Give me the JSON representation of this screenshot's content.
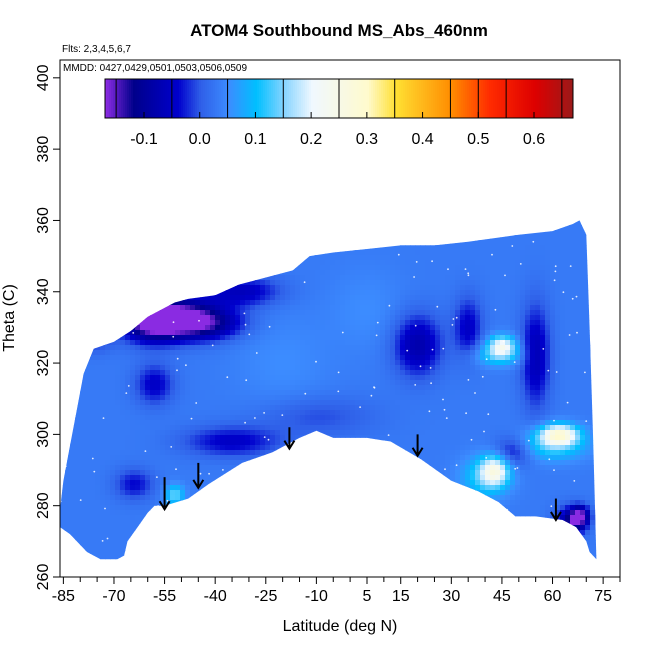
{
  "chart_data": {
    "type": "heatmap",
    "title": "ATOM4 Southbound MS_Abs_460nm",
    "annotations": [
      "Flts: 2,3,4,5,6,7",
      "MMDD: 0427,0429,0501,0503,0506,0509"
    ],
    "xlabel": "Latitude (deg N)",
    "ylabel": "Theta (C)",
    "xlim": [
      -86,
      80
    ],
    "ylim": [
      260,
      405
    ],
    "x_ticks": [
      -85,
      -70,
      -55,
      -40,
      -25,
      -10,
      5,
      15,
      30,
      45,
      60,
      75
    ],
    "x_minor_ticks": [
      -80,
      -75,
      -65,
      -60,
      -50,
      -45,
      -35,
      -30,
      -20,
      -15,
      -5,
      0,
      10,
      20,
      25,
      35,
      40,
      50,
      55,
      65,
      70,
      80
    ],
    "y_ticks": [
      260,
      280,
      300,
      320,
      340,
      360,
      380,
      400
    ],
    "colorbar": {
      "range": [
        -0.17,
        0.67
      ],
      "tick_values": [
        -0.1,
        0.0,
        0.1,
        0.2,
        0.3,
        0.4,
        0.5,
        0.6
      ],
      "tick_labels": [
        "-0.1",
        "0.0",
        "0.1",
        "0.2",
        "0.3",
        "0.4",
        "0.5",
        "0.6"
      ],
      "stops": [
        {
          "value": -0.17,
          "color": "#8a2be2"
        },
        {
          "value": -0.12,
          "color": "#00008b"
        },
        {
          "value": -0.04,
          "color": "#0000cd"
        },
        {
          "value": 0.0,
          "color": "#2f5fe8"
        },
        {
          "value": 0.05,
          "color": "#3c8cff"
        },
        {
          "value": 0.1,
          "color": "#00bfff"
        },
        {
          "value": 0.15,
          "color": "#87d4ff"
        },
        {
          "value": 0.2,
          "color": "#f0f8ff"
        },
        {
          "value": 0.3,
          "color": "#fffacd"
        },
        {
          "value": 0.35,
          "color": "#ffe033"
        },
        {
          "value": 0.45,
          "color": "#ff8c00"
        },
        {
          "value": 0.52,
          "color": "#ff2a00"
        },
        {
          "value": 0.6,
          "color": "#dd0000"
        },
        {
          "value": 0.67,
          "color": "#9a1a1a"
        }
      ]
    },
    "background_value": 0.03,
    "domain_upper": [
      [
        -86,
        279
      ],
      [
        -85,
        287
      ],
      [
        -83,
        297
      ],
      [
        -81,
        307
      ],
      [
        -79,
        317
      ],
      [
        -76,
        324
      ],
      [
        -70,
        326
      ],
      [
        -65,
        329
      ],
      [
        -60,
        333
      ],
      [
        -52,
        337
      ],
      [
        -48,
        338
      ],
      [
        -40,
        339
      ],
      [
        -33,
        342
      ],
      [
        -25,
        344
      ],
      [
        -17,
        346
      ],
      [
        -12,
        350
      ],
      [
        -5,
        351
      ],
      [
        5,
        352
      ],
      [
        15,
        353
      ],
      [
        25,
        353
      ],
      [
        35,
        354
      ],
      [
        50,
        356
      ],
      [
        60,
        357
      ],
      [
        66,
        359
      ],
      [
        68,
        360
      ]
    ],
    "domain_right": [
      [
        68,
        360
      ],
      [
        70,
        356
      ],
      [
        71,
        330
      ],
      [
        72,
        300
      ],
      [
        73,
        265
      ]
    ],
    "domain_lower": [
      [
        73,
        265
      ],
      [
        71,
        267
      ],
      [
        70,
        270
      ],
      [
        67,
        274
      ],
      [
        63,
        276
      ],
      [
        55,
        277
      ],
      [
        49,
        277
      ],
      [
        44,
        281
      ],
      [
        38,
        284
      ],
      [
        30,
        287
      ],
      [
        21,
        293
      ],
      [
        12,
        298
      ],
      [
        5,
        299
      ],
      [
        0,
        299
      ],
      [
        -5,
        299
      ],
      [
        -10,
        301
      ],
      [
        -15,
        299
      ],
      [
        -23,
        295
      ],
      [
        -32,
        292
      ],
      [
        -42,
        286
      ],
      [
        -48,
        282
      ],
      [
        -55,
        280
      ],
      [
        -58,
        280
      ],
      [
        -60,
        278
      ],
      [
        -63,
        274
      ],
      [
        -66,
        270
      ],
      [
        -67,
        266
      ],
      [
        -69,
        265
      ],
      [
        -74,
        265
      ],
      [
        -78,
        267
      ],
      [
        -80,
        269
      ],
      [
        -83,
        272
      ],
      [
        -86,
        274
      ]
    ],
    "anomalies": [
      {
        "x": -59,
        "y": 332,
        "sx": 6,
        "sy": 4,
        "value": -0.17
      },
      {
        "x": -50,
        "y": 333,
        "sx": 8,
        "sy": 4,
        "value": -0.12
      },
      {
        "x": -43,
        "y": 331,
        "sx": 8,
        "sy": 3,
        "value": -0.09
      },
      {
        "x": -32,
        "y": 340,
        "sx": 8,
        "sy": 3,
        "value": -0.06
      },
      {
        "x": -58,
        "y": 314,
        "sx": 4,
        "sy": 4,
        "value": -0.05
      },
      {
        "x": -76,
        "y": 327,
        "sx": 4,
        "sy": 3,
        "value": -0.02
      },
      {
        "x": -64,
        "y": 286,
        "sx": 4,
        "sy": 3,
        "value": -0.04
      },
      {
        "x": -35,
        "y": 298,
        "sx": 10,
        "sy": 3,
        "value": -0.05
      },
      {
        "x": -10,
        "y": 305,
        "sx": 12,
        "sy": 4,
        "value": -0.01
      },
      {
        "x": 20,
        "y": 325,
        "sx": 5,
        "sy": 6,
        "value": -0.08
      },
      {
        "x": 35,
        "y": 330,
        "sx": 3,
        "sy": 6,
        "value": -0.05
      },
      {
        "x": 55,
        "y": 322,
        "sx": 3,
        "sy": 10,
        "value": -0.07
      },
      {
        "x": 48,
        "y": 295,
        "sx": 4,
        "sy": 3,
        "value": -0.05
      },
      {
        "x": 68,
        "y": 277,
        "sx": 2,
        "sy": 2,
        "value": -0.16
      },
      {
        "x": 65,
        "y": 275,
        "sx": 3,
        "sy": 3,
        "value": -0.1
      },
      {
        "x": 45,
        "y": 325,
        "sx": 3,
        "sy": 2,
        "value": 0.2
      },
      {
        "x": 44,
        "y": 322,
        "sx": 5,
        "sy": 2,
        "value": 0.12
      },
      {
        "x": 62,
        "y": 300,
        "sx": 4,
        "sy": 2,
        "value": 0.24
      },
      {
        "x": 60,
        "y": 297,
        "sx": 7,
        "sy": 3,
        "value": 0.13
      },
      {
        "x": 43,
        "y": 290,
        "sx": 3,
        "sy": 3,
        "value": 0.2
      },
      {
        "x": 40,
        "y": 288,
        "sx": 5,
        "sy": 4,
        "value": 0.12
      },
      {
        "x": -52,
        "y": 283,
        "sx": 2,
        "sy": 2,
        "value": 0.14
      },
      {
        "x": 5,
        "y": 335,
        "sx": 8,
        "sy": 8,
        "value": 0.05
      },
      {
        "x": -20,
        "y": 320,
        "sx": 10,
        "sy": 10,
        "value": 0.05
      }
    ],
    "arrows": [
      {
        "x": -55,
        "y_top": 288,
        "y_bottom": 279
      },
      {
        "x": -45,
        "y_top": 292,
        "y_bottom": 285
      },
      {
        "x": -18,
        "y_top": 302,
        "y_bottom": 296
      },
      {
        "x": 20,
        "y_top": 300,
        "y_bottom": 294
      },
      {
        "x": 61,
        "y_top": 282,
        "y_bottom": 276
      }
    ],
    "legend": "none",
    "grid": false
  }
}
